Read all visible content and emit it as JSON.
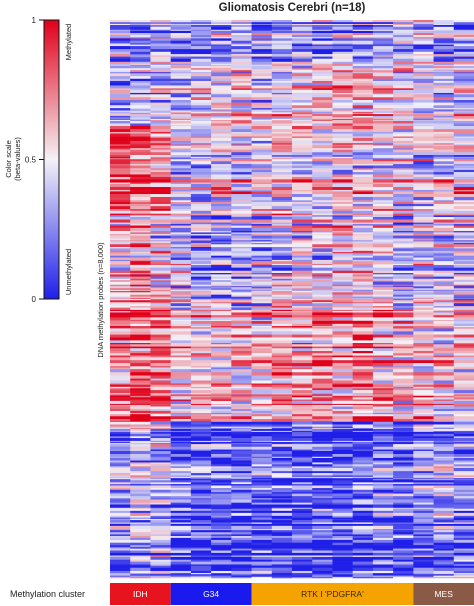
{
  "title": "Gliomatosis Cerebri (n=18)",
  "color_scale": {
    "label_line1": "Color scale",
    "label_line2": "(beta-values)",
    "ticks": [
      "1",
      "0.5",
      "0"
    ],
    "top_label": "Methylated",
    "bottom_label": "Unmethylated",
    "colors": {
      "high": "#e0001a",
      "mid": "#f4f2f6",
      "low": "#1f1fe8"
    }
  },
  "y_axis_label": "DNA methylation probes (n=8,000)",
  "row_label": "Methylation cluster",
  "chart_data": {
    "type": "heatmap",
    "title": "Gliomatosis Cerebri (n=18)",
    "n_samples": 18,
    "n_probes": 8000,
    "value_range": [
      0,
      1
    ],
    "probe_blocks": [
      {
        "approx_fraction": 0.09,
        "mean_beta": [
          0.3,
          0.3,
          0.35,
          0.3,
          0.3,
          0.35,
          0.35,
          0.35,
          0.3,
          0.3,
          0.3,
          0.35,
          0.35,
          0.35,
          0.4,
          0.35,
          0.35,
          0.35
        ]
      },
      {
        "approx_fraction": 0.1,
        "mean_beta": [
          0.35,
          0.4,
          0.4,
          0.45,
          0.45,
          0.5,
          0.55,
          0.5,
          0.55,
          0.55,
          0.6,
          0.65,
          0.65,
          0.6,
          0.55,
          0.5,
          0.45,
          0.5
        ]
      },
      {
        "approx_fraction": 0.16,
        "mean_beta": [
          0.85,
          0.85,
          0.8,
          0.5,
          0.45,
          0.55,
          0.5,
          0.5,
          0.6,
          0.55,
          0.55,
          0.6,
          0.55,
          0.55,
          0.5,
          0.45,
          0.55,
          0.55
        ]
      },
      {
        "approx_fraction": 0.15,
        "mean_beta": [
          0.6,
          0.65,
          0.55,
          0.4,
          0.35,
          0.3,
          0.3,
          0.35,
          0.45,
          0.5,
          0.45,
          0.5,
          0.5,
          0.45,
          0.35,
          0.45,
          0.4,
          0.4
        ]
      },
      {
        "approx_fraction": 0.16,
        "mean_beta": [
          0.75,
          0.8,
          0.75,
          0.6,
          0.6,
          0.6,
          0.55,
          0.55,
          0.7,
          0.7,
          0.7,
          0.7,
          0.7,
          0.65,
          0.55,
          0.6,
          0.55,
          0.55
        ]
      },
      {
        "approx_fraction": 0.06,
        "mean_beta": [
          0.85,
          0.9,
          0.85,
          0.65,
          0.6,
          0.65,
          0.65,
          0.6,
          0.75,
          0.75,
          0.75,
          0.7,
          0.8,
          0.8,
          0.65,
          0.75,
          0.6,
          0.6
        ]
      },
      {
        "approx_fraction": 0.28,
        "mean_beta": [
          0.3,
          0.35,
          0.3,
          0.1,
          0.1,
          0.08,
          0.1,
          0.15,
          0.08,
          0.08,
          0.1,
          0.08,
          0.1,
          0.15,
          0.1,
          0.2,
          0.25,
          0.2
        ]
      }
    ],
    "clusters": [
      {
        "name": "IDH",
        "samples": 3,
        "color": "#e8141d"
      },
      {
        "name": "G34",
        "samples": 4,
        "color": "#1a1aee"
      },
      {
        "name": "RTK I 'PDGFRA'",
        "samples": 8,
        "color": "#f5a300"
      },
      {
        "name": "MES",
        "samples": 3,
        "color": "#8b5a46"
      }
    ]
  }
}
